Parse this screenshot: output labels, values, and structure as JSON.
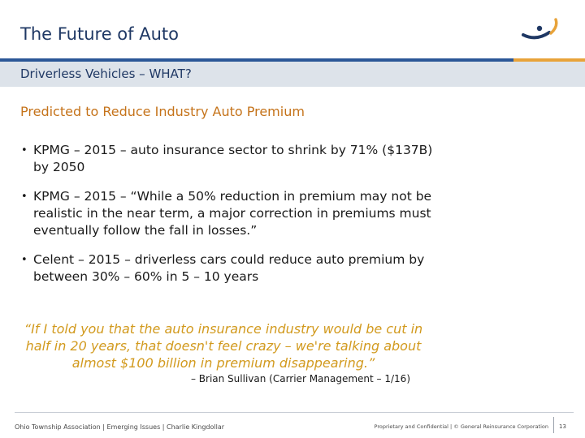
{
  "header": {
    "title": "The Future of Auto",
    "colors": {
      "title": "#1f3864",
      "rule_blue": "#2b5797",
      "rule_gold": "#e8a33a",
      "logo_navy": "#1f3864",
      "logo_gold": "#e8a33a"
    }
  },
  "section": {
    "band_title": "Driverless Vehicles – WHAT?"
  },
  "subheading": "Predicted to Reduce Industry Auto Premium",
  "bullets": [
    "KPMG – 2015 – auto insurance sector to shrink by 71% ($137B) by 2050",
    "KPMG – 2015 – “While a 50% reduction in premium may not be realistic in the near term, a major correction in premiums must eventually follow the fall in losses.”",
    "Celent – 2015 – driverless cars could reduce auto premium by between 30% – 60% in 5 – 10 years"
  ],
  "bullet_marker": "•",
  "quote": "“If I told you that the auto insurance industry would be cut in half in 20 years, that doesn't feel crazy – we're talking about almost $100 billion in premium disappearing.”",
  "attribution": "– Brian Sullivan (Carrier Management – 1/16)",
  "footer": {
    "left": "Ohio Township Association | Emerging Issues | Charlie Kingdollar",
    "right": "Proprietary and Confidential | © General Reinsurance Corporation",
    "page_number": "13"
  }
}
